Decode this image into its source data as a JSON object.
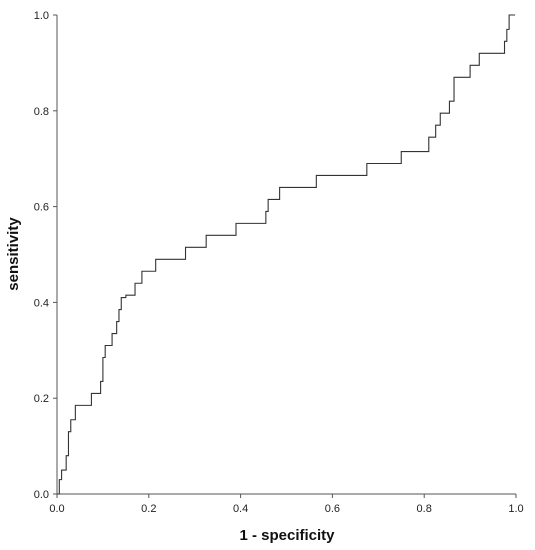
{
  "chart_data": {
    "type": "line",
    "title": "",
    "xlabel": "1 - specificity",
    "ylabel": "sensitivity",
    "xlim": [
      0,
      1
    ],
    "ylim": [
      0,
      1
    ],
    "x_ticks": [
      "0.0",
      "0.2",
      "0.4",
      "0.6",
      "0.8",
      "1.0"
    ],
    "y_ticks": [
      "0.0",
      "0.2",
      "0.4",
      "0.6",
      "0.8",
      "1.0"
    ],
    "grid": false,
    "legend": "none",
    "series": [
      {
        "step": true,
        "x": [
          0,
          0.005,
          0.01,
          0.02,
          0.025,
          0.03,
          0.04,
          0.075,
          0.095,
          0.1,
          0.105,
          0.12,
          0.13,
          0.135,
          0.14,
          0.15,
          0.17,
          0.185,
          0.215,
          0.28,
          0.325,
          0.39,
          0.455,
          0.46,
          0.475,
          0.485,
          0.565,
          0.675,
          0.75,
          0.81,
          0.815,
          0.825,
          0.835,
          0.855,
          0.865,
          0.9,
          0.92,
          0.975,
          0.98,
          0.985,
          0.998
        ],
        "y": [
          0,
          0.03,
          0.05,
          0.08,
          0.13,
          0.155,
          0.185,
          0.21,
          0.235,
          0.285,
          0.31,
          0.335,
          0.36,
          0.385,
          0.41,
          0.415,
          0.44,
          0.465,
          0.49,
          0.515,
          0.54,
          0.565,
          0.59,
          0.615,
          0.615,
          0.64,
          0.665,
          0.69,
          0.715,
          0.745,
          0.745,
          0.77,
          0.795,
          0.82,
          0.87,
          0.895,
          0.92,
          0.945,
          0.97,
          1.0,
          1.0
        ]
      }
    ]
  }
}
